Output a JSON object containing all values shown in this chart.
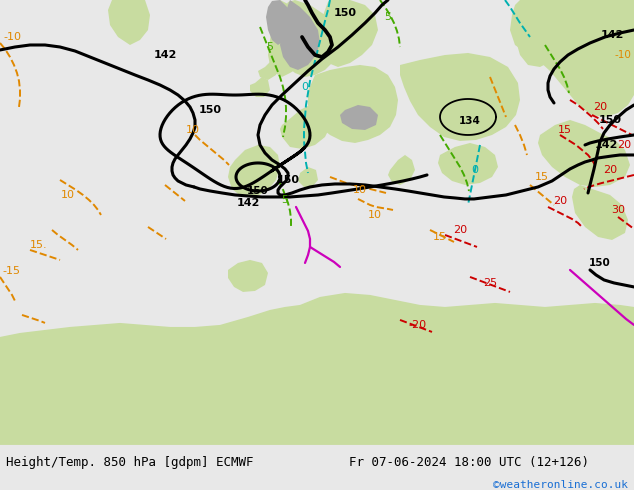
{
  "title_left": "Height/Temp. 850 hPa [gdpm] ECMWF",
  "title_right": "Fr 07-06-2024 18:00 UTC (12+126)",
  "copyright": "©weatheronline.co.uk",
  "copyright_color": "#1a6fd4",
  "sea_color": "#d4dce8",
  "land_color": "#c8dca0",
  "mountain_color": "#a8a8a8",
  "footer_bg": "#e8e8e8",
  "footer_text_color": "#000000",
  "fig_width": 6.34,
  "fig_height": 4.9,
  "black_lw": 2.2,
  "temp_lw": 1.4,
  "cyan_color": "#00b0b0",
  "green_color": "#44aa00",
  "orange_color": "#e08800",
  "red_color": "#cc0000",
  "magenta_color": "#cc00bb"
}
